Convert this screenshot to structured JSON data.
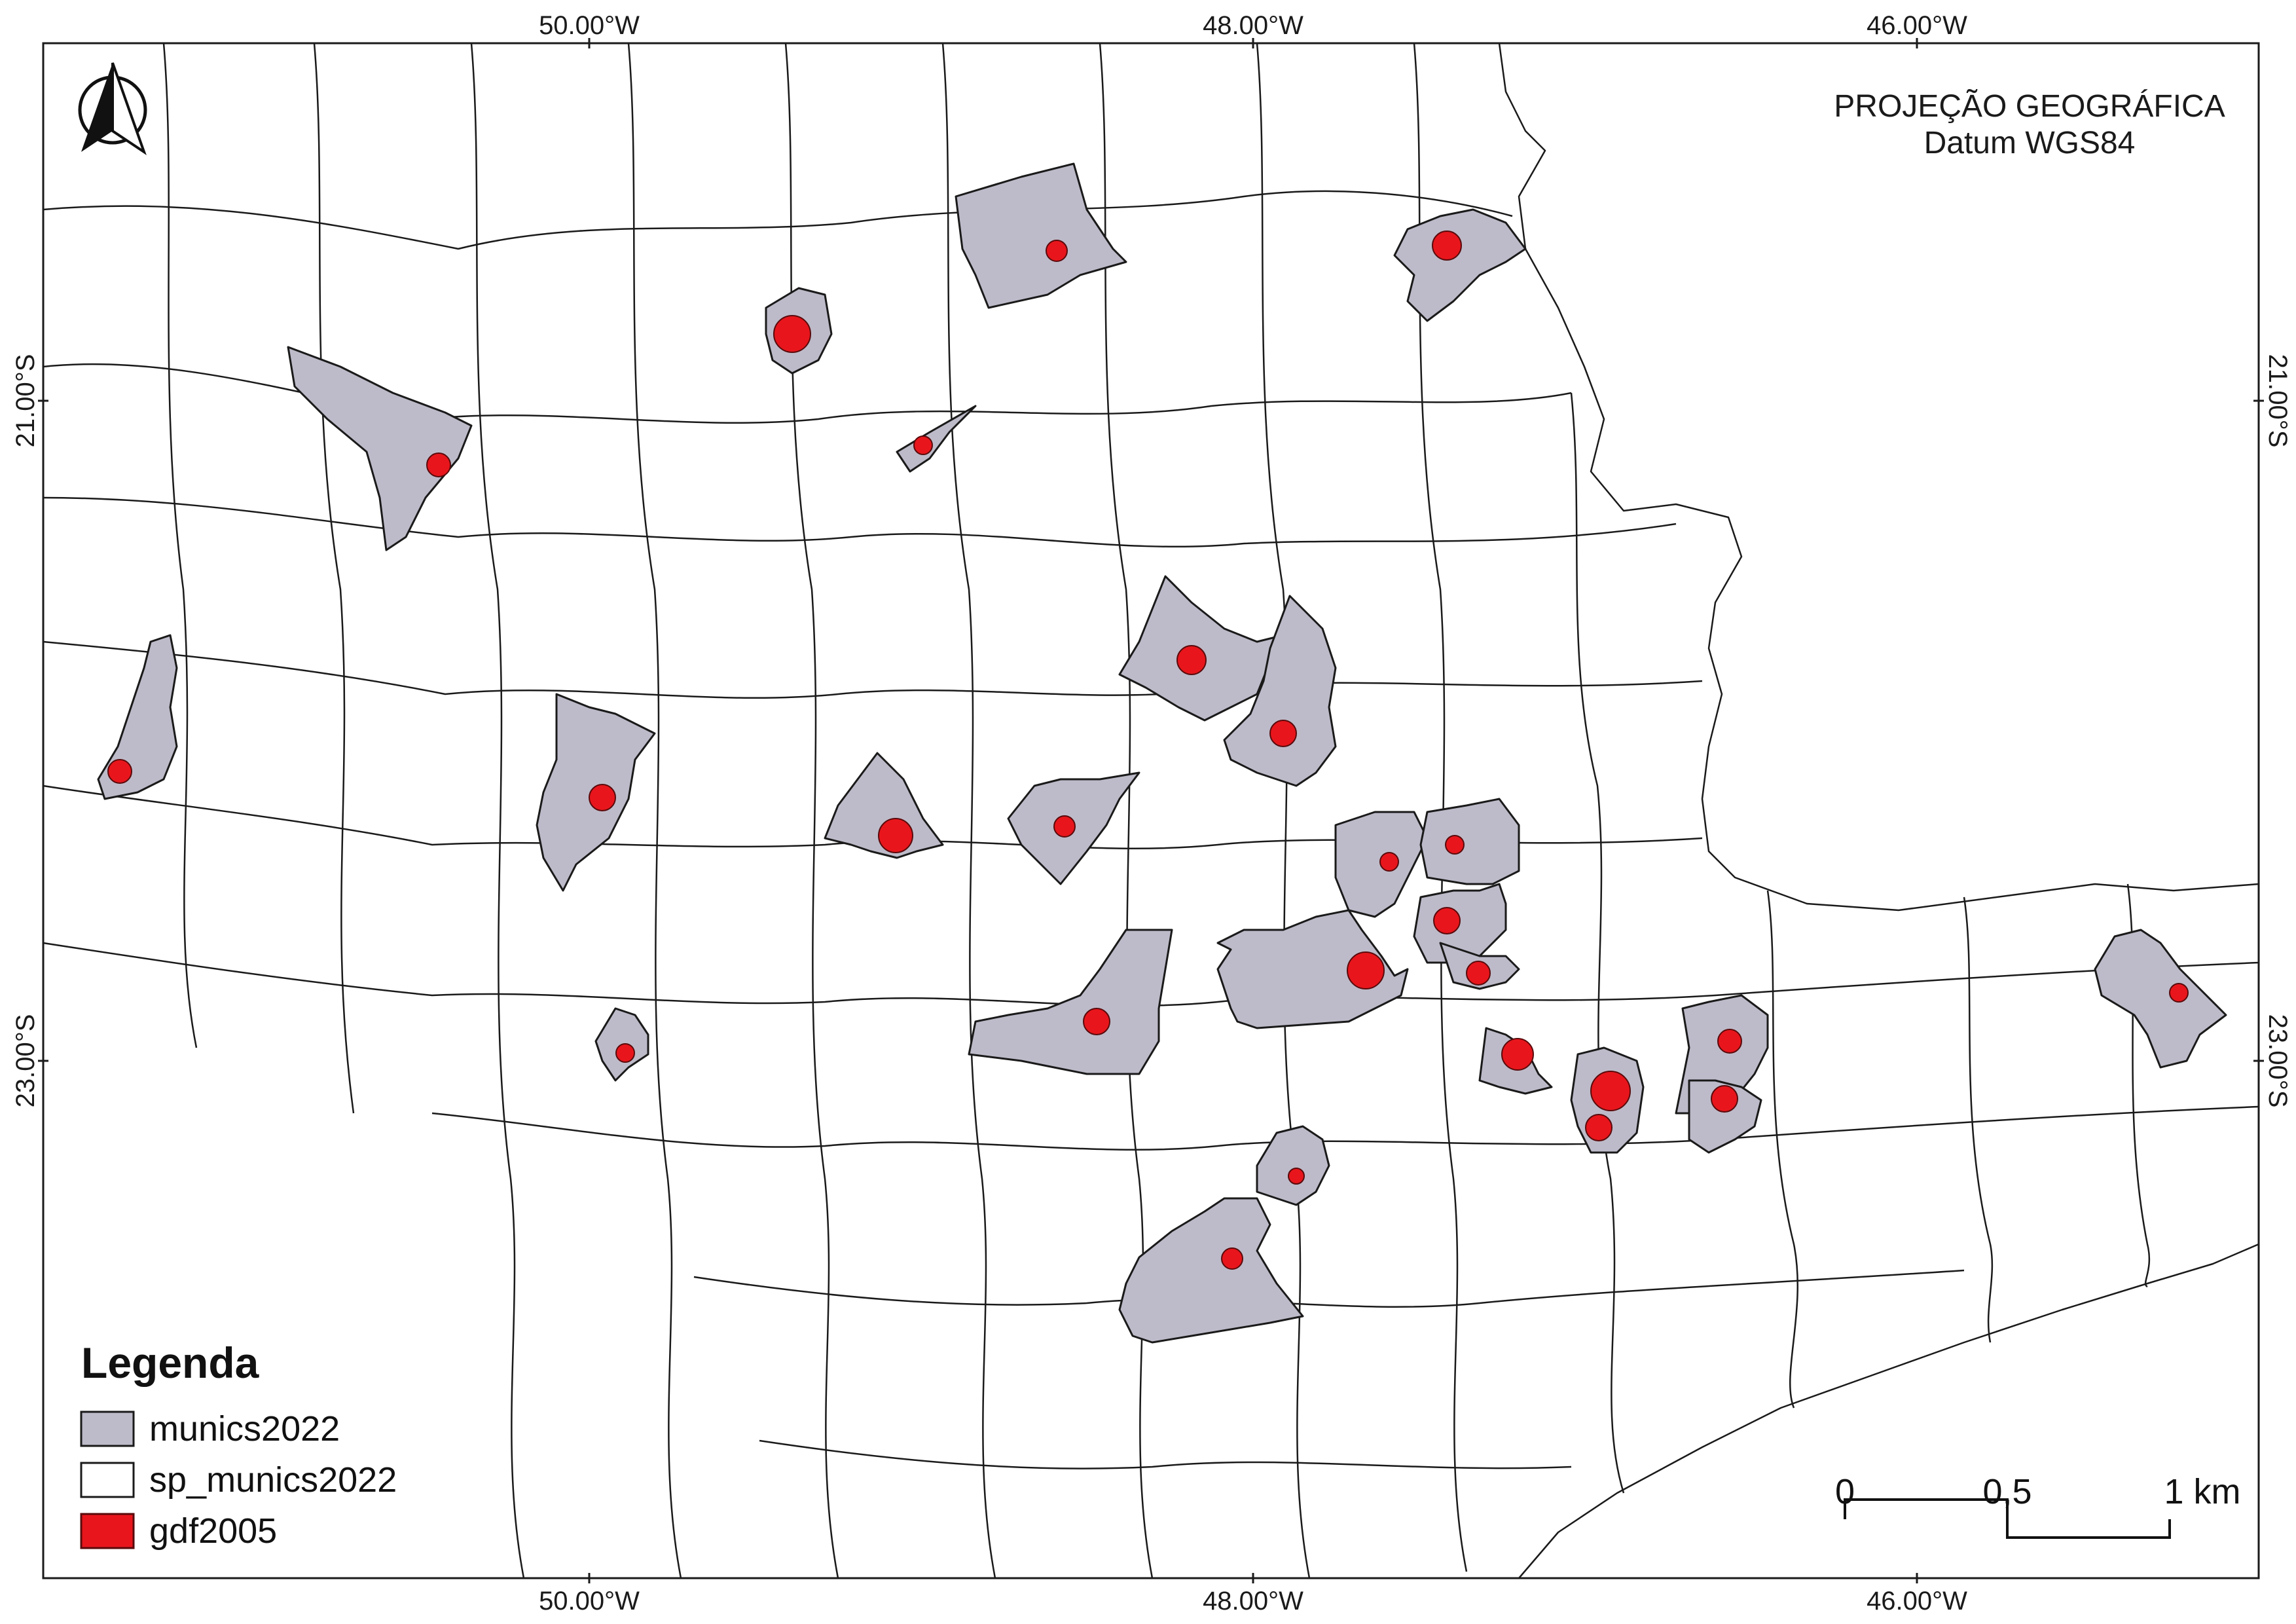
{
  "projection": {
    "title": "PROJEÇÃO GEOGRÁFICA",
    "datum": "Datum WGS84"
  },
  "graticule": {
    "longitudes": [
      "50.00°W",
      "48.00°W",
      "46.00°W"
    ],
    "latitudes": [
      "21.00°S",
      "23.00°S"
    ]
  },
  "legend": {
    "title": "Legenda",
    "items": [
      {
        "label": "munics2022",
        "color": "#bdbbc9"
      },
      {
        "label": "sp_munics2022",
        "color": "#ffffff"
      },
      {
        "label": "gdf2005",
        "color": "#e8161c"
      }
    ]
  },
  "scale_bar": {
    "labels": [
      "0",
      "0,5",
      "1 km"
    ]
  },
  "north_arrow": {
    "icon": "north-arrow-icon"
  },
  "colors": {
    "highlight_municipality": "#bdbbc9",
    "urban_area": "#e8161c",
    "border": "#1a1a1a"
  }
}
